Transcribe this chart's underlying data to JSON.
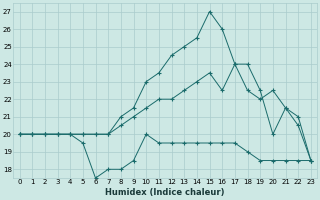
{
  "xlabel": "Humidex (Indice chaleur)",
  "background_color": "#cde8e4",
  "grid_color": "#aacccc",
  "line_color": "#1a6b6b",
  "xlim": [
    -0.5,
    23.5
  ],
  "ylim": [
    17.5,
    27.5
  ],
  "xticks": [
    0,
    1,
    2,
    3,
    4,
    5,
    6,
    7,
    8,
    9,
    10,
    11,
    12,
    13,
    14,
    15,
    16,
    17,
    18,
    19,
    20,
    21,
    22,
    23
  ],
  "yticks": [
    18,
    19,
    20,
    21,
    22,
    23,
    24,
    25,
    26,
    27
  ],
  "series1_x": [
    0,
    1,
    2,
    3,
    4,
    5,
    6,
    7,
    8,
    9,
    10,
    11,
    12,
    13,
    14,
    15,
    16,
    17,
    18,
    19,
    20,
    21,
    22,
    23
  ],
  "series1_y": [
    20,
    20,
    20,
    20,
    20,
    19.5,
    17.5,
    18,
    18,
    18.5,
    20,
    19.5,
    19.5,
    19.5,
    19.5,
    19.5,
    19.5,
    19.5,
    19.0,
    18.5,
    18.5,
    18.5,
    18.5,
    18.5
  ],
  "series2_x": [
    0,
    1,
    2,
    3,
    4,
    5,
    6,
    7,
    8,
    9,
    10,
    11,
    12,
    13,
    14,
    15,
    16,
    17,
    18,
    19,
    20,
    21,
    22,
    23
  ],
  "series2_y": [
    20,
    20,
    20,
    20,
    20,
    20,
    20,
    20,
    21,
    21.5,
    23,
    23.5,
    24.5,
    25,
    25.5,
    27,
    26,
    24,
    24,
    22.5,
    20,
    21.5,
    21,
    18.5
  ],
  "series3_x": [
    0,
    1,
    2,
    3,
    4,
    5,
    6,
    7,
    8,
    9,
    10,
    11,
    12,
    13,
    14,
    15,
    16,
    17,
    18,
    19,
    20,
    21,
    22,
    23
  ],
  "series3_y": [
    20,
    20,
    20,
    20,
    20,
    20,
    20,
    20,
    20.5,
    21,
    21.5,
    22,
    22,
    22.5,
    23,
    23.5,
    22.5,
    24,
    22.5,
    22,
    22.5,
    21.5,
    20.5,
    18.5
  ]
}
